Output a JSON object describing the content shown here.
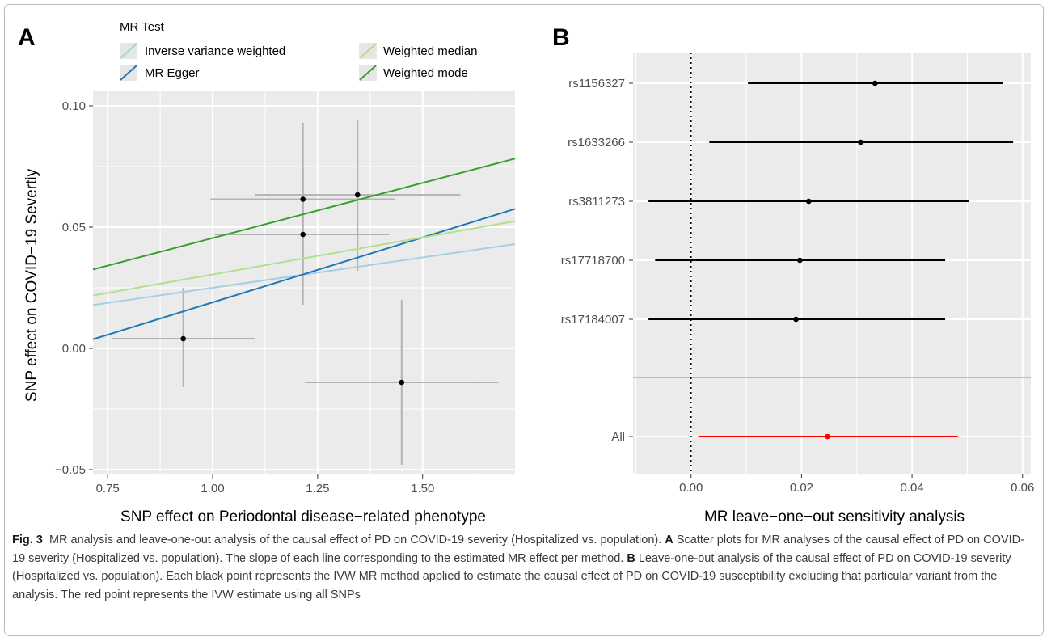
{
  "figure": {
    "panel_a_letter": "A",
    "panel_b_letter": "B"
  },
  "chart_data": [
    {
      "type": "scatter",
      "panel": "A",
      "xlabel": "SNP effect on Periodontal disease−related phenotype",
      "ylabel": "SNP effect on COVID−19 Severtiy",
      "xlim": [
        0.715,
        1.72
      ],
      "ylim": [
        -0.052,
        0.106
      ],
      "xticks": [
        0.75,
        1.0,
        1.25,
        1.5
      ],
      "xtick_labels": [
        "0.75",
        "1.00",
        "1.25",
        "1.50"
      ],
      "yticks": [
        -0.05,
        0.0,
        0.05,
        0.1
      ],
      "ytick_labels": [
        "−0.05",
        "0.00",
        "0.05",
        "0.10"
      ],
      "grid": true,
      "legend": {
        "title": "MR Test",
        "placement": "top",
        "entries": [
          {
            "name": "Inverse variance weighted",
            "color": "#a6cee3"
          },
          {
            "name": "MR Egger",
            "color": "#1f78b4"
          },
          {
            "name": "Weighted median",
            "color": "#b2df8a"
          },
          {
            "name": "Weighted mode",
            "color": "#33a02c"
          }
        ]
      },
      "points": [
        {
          "x": 0.93,
          "y": 0.004,
          "x_lo": 0.76,
          "x_hi": 1.1,
          "y_lo": -0.016,
          "y_hi": 0.025
        },
        {
          "x": 1.215,
          "y": 0.0615,
          "x_lo": 0.995,
          "x_hi": 1.435,
          "y_lo": 0.03,
          "y_hi": 0.093
        },
        {
          "x": 1.215,
          "y": 0.047,
          "x_lo": 1.005,
          "x_hi": 1.42,
          "y_lo": 0.018,
          "y_hi": 0.075
        },
        {
          "x": 1.345,
          "y": 0.0633,
          "x_lo": 1.1,
          "x_hi": 1.59,
          "y_lo": 0.032,
          "y_hi": 0.094
        },
        {
          "x": 1.45,
          "y": -0.014,
          "x_lo": 1.22,
          "x_hi": 1.68,
          "y_lo": -0.048,
          "y_hi": 0.02
        }
      ],
      "lines": [
        {
          "name": "Inverse variance weighted",
          "color": "#a6cee3",
          "intercept": 0.0,
          "slope": 0.025
        },
        {
          "name": "MR Egger",
          "color": "#1f78b4",
          "intercept": -0.0345,
          "slope": 0.0535
        },
        {
          "name": "Weighted median",
          "color": "#b2df8a",
          "intercept": 0.0,
          "slope": 0.0305
        },
        {
          "name": "Weighted mode",
          "color": "#33a02c",
          "intercept": 0.0,
          "slope": 0.0455
        }
      ]
    },
    {
      "type": "forest",
      "panel": "B",
      "xlabel": "MR leave−one−out sensitivity analysis",
      "xlim": [
        -0.0105,
        0.0615
      ],
      "xticks": [
        0.0,
        0.02,
        0.04,
        0.06
      ],
      "xtick_labels": [
        "0.00",
        "0.02",
        "0.04",
        "0.06"
      ],
      "grid": true,
      "reference_line_x": 0,
      "rows": [
        {
          "label": "rs1156327",
          "estimate": 0.0333,
          "lower": 0.0103,
          "upper": 0.0565,
          "color": "#000000"
        },
        {
          "label": "rs1633266",
          "estimate": 0.0307,
          "lower": 0.0033,
          "upper": 0.0583,
          "color": "#000000"
        },
        {
          "label": "rs3811273",
          "estimate": 0.0213,
          "lower": -0.0077,
          "upper": 0.0503,
          "color": "#000000"
        },
        {
          "label": "rs17718700",
          "estimate": 0.0197,
          "lower": -0.0065,
          "upper": 0.046,
          "color": "#000000"
        },
        {
          "label": "rs17184007",
          "estimate": 0.019,
          "lower": -0.0077,
          "upper": 0.046,
          "color": "#000000"
        },
        {
          "label": "All",
          "estimate": 0.0247,
          "lower": 0.0013,
          "upper": 0.0483,
          "color": "#ff0000"
        }
      ]
    }
  ],
  "caption": {
    "figure_label": "Fig. 3",
    "intro": "MR analysis and leave-one-out analysis of the causal effect of PD on COVID-19 severity (Hospitalized vs. population).",
    "part_a_letter": "A",
    "part_a_text": "Scatter plots for MR analyses of the causal effect of PD on COVID-19 severity (Hospitalized vs. population). The slope of each line corresponding to the estimated MR effect per method.",
    "part_b_letter": "B",
    "part_b_text": "Leave-one-out analysis of the causal effect of PD on COVID-19 severity (Hospitalized vs. population). Each black point represents the IVW MR method applied to estimate the causal effect of PD on COVID-19 susceptibility excluding that particular variant from the analysis. The red point represents the IVW estimate using all SNPs"
  }
}
